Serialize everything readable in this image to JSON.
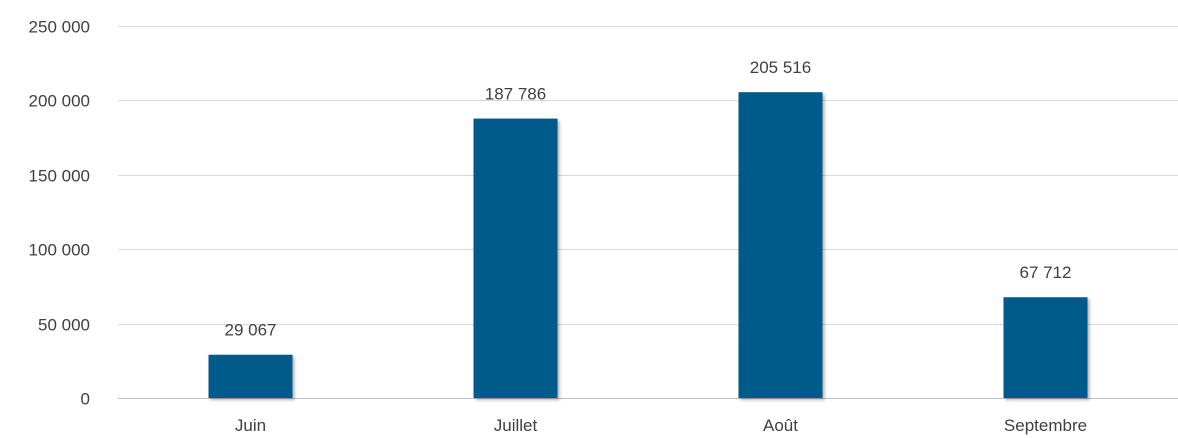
{
  "chart_data": {
    "type": "bar",
    "categories": [
      "Juin",
      "Juillet",
      "Août",
      "Septembre"
    ],
    "values": [
      29067,
      187786,
      205516,
      67712
    ],
    "value_labels": [
      "29 067",
      "187 786",
      "205 516",
      "67 712"
    ],
    "ylim": [
      0,
      250000
    ],
    "yticks": [
      0,
      50000,
      100000,
      150000,
      200000,
      250000
    ],
    "ytick_labels": [
      "0",
      "50 000",
      "100 000",
      "150 000",
      "200 000",
      "250 000"
    ],
    "bar_color": "#005a8a",
    "grid": true,
    "legend": "none",
    "title": "",
    "xlabel": "",
    "ylabel": ""
  }
}
